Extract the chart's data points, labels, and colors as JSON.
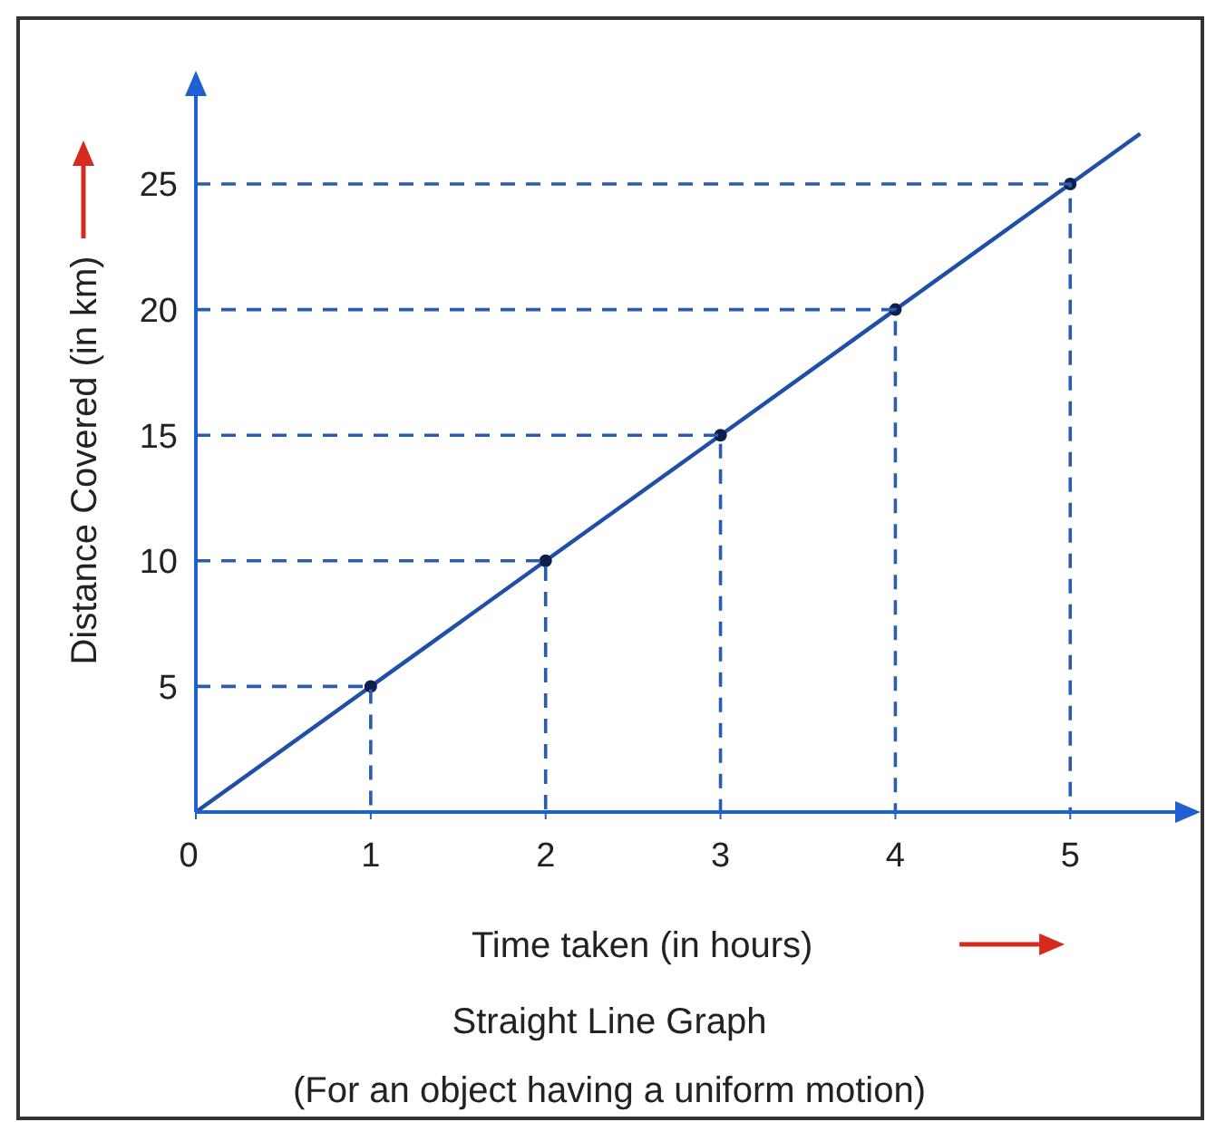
{
  "chart_data": {
    "type": "line",
    "title": "Straight Line Graph",
    "subtitle": "(For an object having a uniform motion)",
    "xlabel": "Time taken (in hours)",
    "ylabel": "Distance Covered (in km)",
    "xlim": [
      0,
      5.6
    ],
    "ylim": [
      0,
      28.5
    ],
    "xticks": [
      0,
      1,
      2,
      3,
      4,
      5
    ],
    "yticks": [
      5,
      10,
      15,
      20,
      25
    ],
    "grid": false,
    "series": [
      {
        "color": "#1f4fa8",
        "x": [
          0,
          1,
          2,
          3,
          4,
          5,
          5.4
        ],
        "values": [
          0,
          5,
          10,
          15,
          20,
          25,
          27
        ],
        "marker": "none",
        "line_style": "solid"
      },
      {
        "type": "scatter",
        "color": "#0d1f4a",
        "x": [
          1,
          2,
          3,
          4,
          5
        ],
        "values": [
          5,
          10,
          15,
          20,
          25
        ],
        "marker": "circle"
      },
      {
        "type": "line",
        "color": "#2a5db0",
        "x": [
          0,
          1,
          1
        ],
        "values": [
          5,
          5,
          0
        ],
        "marker": "none",
        "line_style": "dashed"
      },
      {
        "type": "line",
        "color": "#2a5db0",
        "x": [
          0,
          2,
          2
        ],
        "values": [
          10,
          10,
          0
        ],
        "marker": "none",
        "line_style": "dashed"
      },
      {
        "type": "line",
        "color": "#2a5db0",
        "x": [
          0,
          3,
          3
        ],
        "values": [
          15,
          15,
          0
        ],
        "marker": "none",
        "line_style": "dashed"
      },
      {
        "type": "line",
        "color": "#2a5db0",
        "x": [
          0,
          4,
          4
        ],
        "values": [
          20,
          20,
          0
        ],
        "marker": "none",
        "line_style": "dashed"
      },
      {
        "type": "line",
        "color": "#2a5db0",
        "x": [
          0,
          5,
          5
        ],
        "values": [
          25,
          25,
          0
        ],
        "marker": "none",
        "line_style": "dashed"
      }
    ]
  }
}
